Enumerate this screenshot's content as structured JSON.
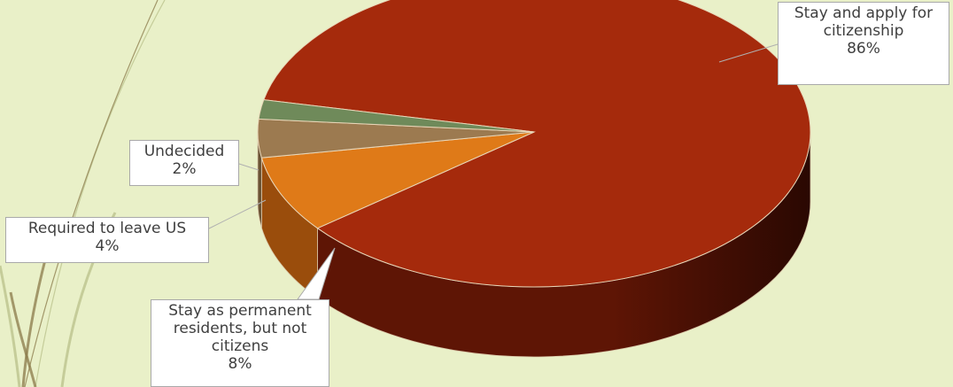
{
  "chart_data": {
    "type": "pie",
    "title": "",
    "slices": [
      {
        "label": "Stay and apply for citizenship",
        "line1": "Stay and apply for",
        "line2": "citizenship",
        "value": 86,
        "pct": "86%",
        "color": "#a52a0c",
        "side": "#5e1505"
      },
      {
        "label": "Stay as permanent residents, but not citizens",
        "line1": "Stay as permanent",
        "line2": "residents, but not",
        "line3": "citizens",
        "value": 8,
        "pct": "8%",
        "color": "#df7a18",
        "side": "#9a4d0c"
      },
      {
        "label": "Required to leave US",
        "line1": "Required to leave US",
        "value": 4,
        "pct": "4%",
        "color": "#9c7a50",
        "side": "#6a5233"
      },
      {
        "label": "Undecided",
        "line1": "Undecided",
        "value": 2,
        "pct": "2%",
        "color": "#6f8a5a",
        "side": "#4a5e3a"
      }
    ]
  }
}
